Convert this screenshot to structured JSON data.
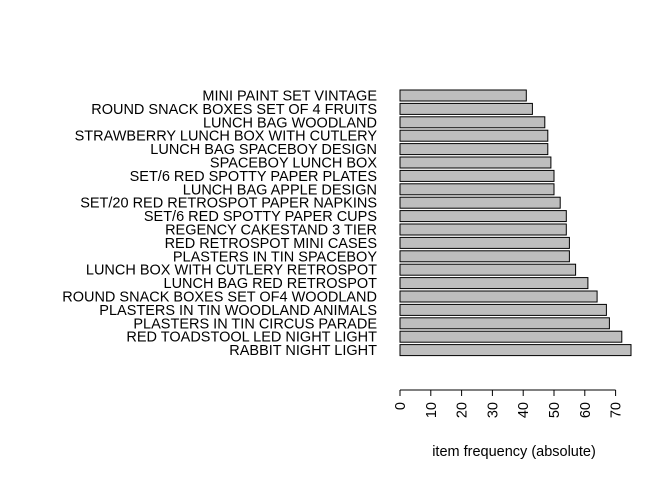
{
  "chart_data": {
    "type": "bar",
    "orientation": "horizontal",
    "categories": [
      "MINI PAINT SET VINTAGE",
      "ROUND SNACK BOXES SET OF 4 FRUITS",
      "LUNCH BAG WOODLAND",
      "STRAWBERRY LUNCH BOX WITH CUTLERY",
      "LUNCH BAG SPACEBOY DESIGN",
      "SPACEBOY LUNCH BOX",
      "SET/6 RED SPOTTY PAPER PLATES",
      "LUNCH BAG APPLE DESIGN",
      "SET/20 RED RETROSPOT PAPER NAPKINS",
      "SET/6 RED SPOTTY PAPER CUPS",
      "REGENCY CAKESTAND 3 TIER",
      "RED RETROSPOT MINI CASES",
      "PLASTERS IN TIN SPACEBOY",
      "LUNCH BOX WITH CUTLERY RETROSPOT",
      "LUNCH BAG RED RETROSPOT",
      "ROUND SNACK BOXES SET OF4 WOODLAND",
      "PLASTERS IN TIN WOODLAND ANIMALS",
      "PLASTERS IN TIN CIRCUS PARADE",
      "RED TOADSTOOL LED NIGHT LIGHT",
      "RABBIT NIGHT LIGHT"
    ],
    "values": [
      41,
      43,
      47,
      48,
      48,
      49,
      50,
      50,
      52,
      54,
      54,
      55,
      55,
      57,
      61,
      64,
      67,
      68,
      72,
      75
    ],
    "xlabel": "item frequency (absolute)",
    "xticks": [
      "0",
      "10",
      "20",
      "30",
      "40",
      "50",
      "60",
      "70"
    ],
    "xlim": [
      0,
      75
    ],
    "bar_color": "#bebebe",
    "grid": false,
    "legend": "none"
  }
}
